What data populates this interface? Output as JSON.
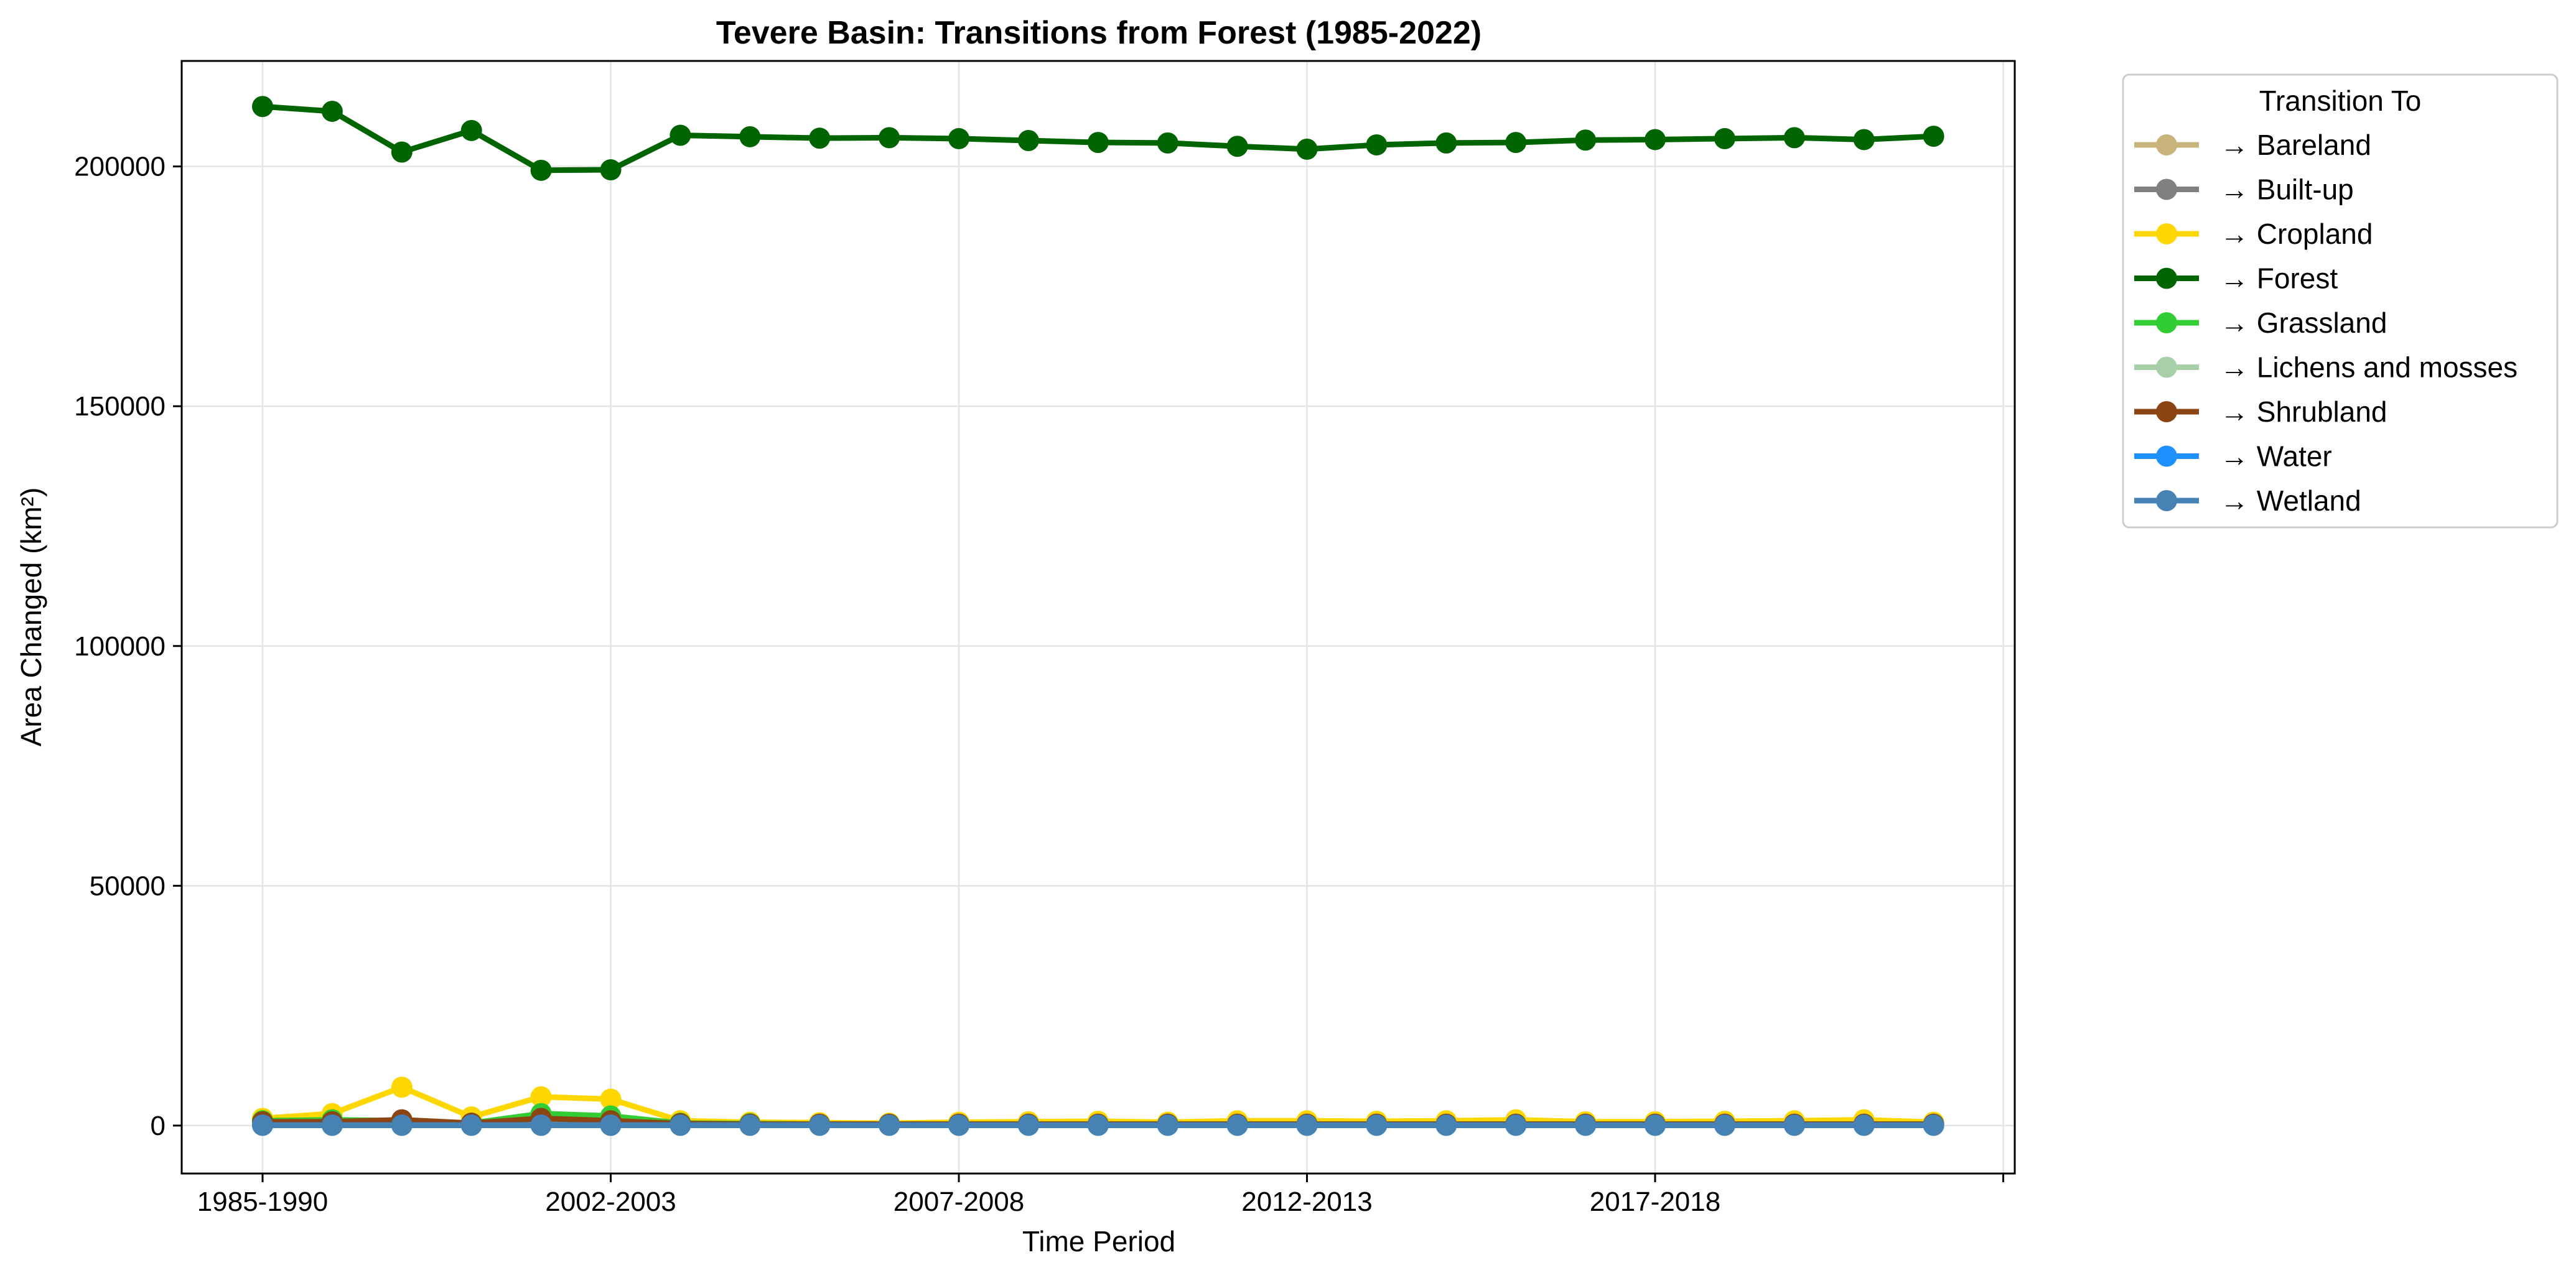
{
  "chart_data": {
    "type": "line",
    "title": "Tevere Basin: Transitions from Forest (1985-2022)",
    "xlabel": "Time Period",
    "ylabel": "Area Changed (km²)",
    "ylim": [
      -10000,
      222000
    ],
    "grid": true,
    "legend": {
      "title": "Transition To",
      "placement": "outside-top-right"
    },
    "x_ticks": [
      {
        "label": "1985-1990",
        "index": 0
      },
      {
        "label": "2002-2003",
        "index": 5
      },
      {
        "label": "2007-2008",
        "index": 10
      },
      {
        "label": "2012-2013",
        "index": 15
      },
      {
        "label": "2017-2018",
        "index": 20
      },
      {
        "label": "",
        "index": 25
      }
    ],
    "y_ticks": [
      0,
      50000,
      100000,
      150000,
      200000
    ],
    "n_points": 25,
    "series": [
      {
        "name": "→ Bareland",
        "color": "#c8b47a",
        "values": [
          150,
          150,
          150,
          120,
          150,
          150,
          100,
          100,
          100,
          100,
          100,
          100,
          100,
          100,
          100,
          100,
          100,
          100,
          100,
          100,
          100,
          100,
          100,
          100,
          100
        ]
      },
      {
        "name": "→ Built-up",
        "color": "#808080",
        "values": [
          500,
          500,
          600,
          400,
          700,
          600,
          400,
          300,
          300,
          300,
          300,
          300,
          300,
          300,
          300,
          300,
          300,
          300,
          300,
          300,
          300,
          300,
          300,
          300,
          300
        ]
      },
      {
        "name": "→ Cropland",
        "color": "#ffd700",
        "values": [
          1500,
          2500,
          8000,
          1800,
          6000,
          5500,
          1000,
          700,
          600,
          500,
          700,
          800,
          900,
          700,
          1000,
          1000,
          900,
          1000,
          1200,
          800,
          800,
          900,
          1000,
          1200,
          700
        ]
      },
      {
        "name": "→ Forest",
        "color": "#006400",
        "values": [
          212500,
          211500,
          203000,
          207500,
          199200,
          199300,
          206500,
          206200,
          205900,
          206000,
          205800,
          205400,
          205000,
          204900,
          204200,
          203600,
          204500,
          204900,
          205000,
          205500,
          205600,
          205800,
          206000,
          205600,
          206300
        ]
      },
      {
        "name": "→ Grassland",
        "color": "#32cd32",
        "values": [
          1000,
          1200,
          1000,
          500,
          2500,
          2000,
          500,
          400,
          300,
          300,
          300,
          300,
          300,
          300,
          300,
          300,
          300,
          300,
          300,
          300,
          300,
          300,
          300,
          300,
          300
        ]
      },
      {
        "name": "→ Lichens and mosses",
        "color": "#a8d0a8",
        "values": [
          50,
          50,
          50,
          50,
          50,
          50,
          50,
          50,
          50,
          50,
          50,
          50,
          50,
          50,
          50,
          50,
          50,
          50,
          50,
          50,
          50,
          50,
          50,
          50,
          50
        ]
      },
      {
        "name": "→ Shrubland",
        "color": "#8b4513",
        "values": [
          800,
          800,
          1200,
          500,
          1500,
          1000,
          400,
          300,
          300,
          300,
          300,
          300,
          300,
          300,
          300,
          300,
          300,
          300,
          300,
          300,
          300,
          300,
          300,
          300,
          300
        ]
      },
      {
        "name": "→ Water",
        "color": "#1e90ff",
        "values": [
          100,
          100,
          100,
          100,
          100,
          100,
          100,
          100,
          100,
          100,
          100,
          100,
          100,
          100,
          100,
          100,
          100,
          100,
          100,
          100,
          100,
          100,
          100,
          100,
          100
        ]
      },
      {
        "name": "→ Wetland",
        "color": "#4682b4",
        "values": [
          50,
          50,
          50,
          50,
          50,
          50,
          50,
          50,
          50,
          50,
          50,
          50,
          50,
          50,
          50,
          50,
          50,
          50,
          50,
          50,
          50,
          50,
          50,
          50,
          50
        ]
      }
    ]
  }
}
